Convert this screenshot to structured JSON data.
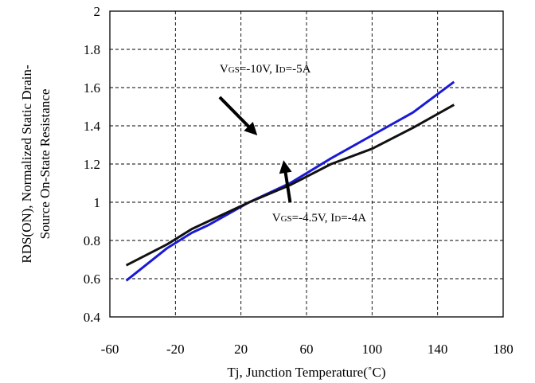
{
  "chart_data": {
    "type": "line",
    "xlabel": "Tj, Junction Temperature(˚C)",
    "ylabel_line1": "RDS(ON), Normalized Static Drain-",
    "ylabel_line2": "Source On-State Resistance",
    "xlim": [
      -60,
      180
    ],
    "ylim": [
      0.4,
      2
    ],
    "x_ticks": [
      -60,
      -20,
      20,
      60,
      100,
      140,
      180
    ],
    "x_tick_labels": [
      "-60",
      "-20",
      "20",
      "60",
      "100",
      "140",
      "180"
    ],
    "y_ticks": [
      0.4,
      0.6,
      0.8,
      1,
      1.2,
      1.4,
      1.6,
      1.8,
      2
    ],
    "y_tick_labels": [
      "0.4",
      "0.6",
      "0.8",
      "1",
      "1.2",
      "1.4",
      "1.6",
      "1.8",
      "2"
    ],
    "grid": true,
    "grid_style": "dashed",
    "series": [
      {
        "color": "#1a1ad6",
        "x": [
          -50,
          -25,
          -10,
          0,
          25,
          50,
          75,
          100,
          125,
          150
        ],
        "y": [
          0.59,
          0.76,
          0.84,
          0.88,
          1.0,
          1.1,
          1.23,
          1.35,
          1.47,
          1.63
        ]
      },
      {
        "color": "#111111",
        "x": [
          -50,
          -25,
          -10,
          0,
          25,
          50,
          75,
          100,
          125,
          150
        ],
        "y": [
          0.67,
          0.78,
          0.86,
          0.9,
          1.0,
          1.09,
          1.2,
          1.28,
          1.39,
          1.51
        ]
      }
    ],
    "annotations": [
      {
        "v": "V",
        "v_sub": "GS",
        "mid": "=-10V, I",
        "i_sub": "D",
        "end": "=-5A",
        "text_x": 7,
        "text_y": 1.68,
        "arrow_from": [
          7,
          1.55
        ],
        "arrow_to": [
          30,
          1.35
        ]
      },
      {
        "v": "V",
        "v_sub": "GS",
        "mid": "=-4.5V, I",
        "i_sub": "D",
        "end": "=-4A",
        "text_x": 39,
        "text_y": 0.9,
        "arrow_from": [
          50,
          1.0
        ],
        "arrow_to": [
          46,
          1.22
        ]
      }
    ]
  }
}
